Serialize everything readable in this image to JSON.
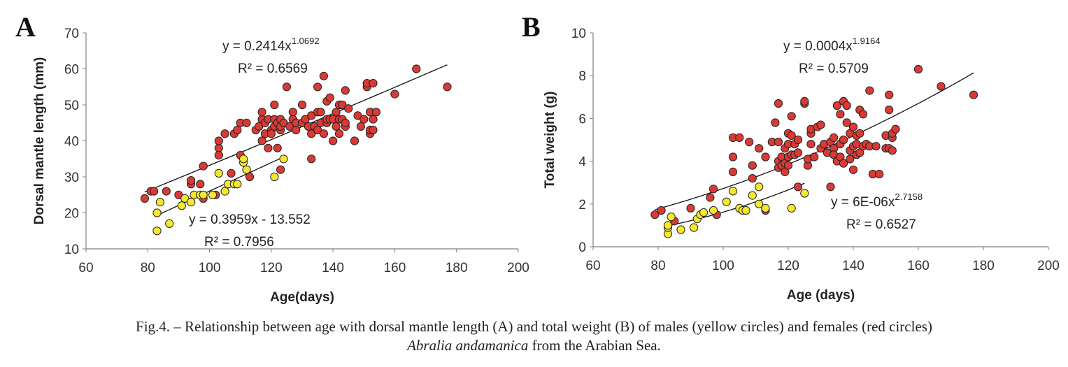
{
  "chart_data": [
    {
      "panel_label": "A",
      "type": "scatter",
      "xlabel": "Age(days)",
      "ylabel": "Dorsal mantle length (mm)",
      "xlim": [
        60,
        200
      ],
      "ylim": [
        10,
        70
      ],
      "xticks": [
        60,
        80,
        100,
        120,
        140,
        160,
        180,
        200
      ],
      "yticks": [
        10,
        20,
        30,
        40,
        50,
        60,
        70
      ],
      "grid": false,
      "colors": {
        "females": "#d93a35",
        "males": "#f5e72e",
        "edge": "#222222"
      },
      "series": [
        {
          "key": "females",
          "points": [
            [
              79,
              24
            ],
            [
              81,
              26
            ],
            [
              82,
              26
            ],
            [
              86,
              26
            ],
            [
              90,
              25
            ],
            [
              94,
              28
            ],
            [
              94,
              29
            ],
            [
              97,
              28
            ],
            [
              98,
              33
            ],
            [
              98,
              24
            ],
            [
              102,
              25
            ],
            [
              103,
              38
            ],
            [
              103,
              40
            ],
            [
              103,
              36
            ],
            [
              105,
              42
            ],
            [
              107,
              31
            ],
            [
              108,
              42
            ],
            [
              109,
              43
            ],
            [
              110,
              36
            ],
            [
              110,
              45
            ],
            [
              113,
              30
            ],
            [
              112,
              45
            ],
            [
              115,
              43
            ],
            [
              116,
              44
            ],
            [
              117,
              46
            ],
            [
              117,
              48
            ],
            [
              117,
              40
            ],
            [
              118,
              42
            ],
            [
              118,
              45
            ],
            [
              119,
              38
            ],
            [
              119,
              46
            ],
            [
              120,
              43
            ],
            [
              120,
              42
            ],
            [
              121,
              44
            ],
            [
              121,
              46
            ],
            [
              121,
              50
            ],
            [
              122,
              38
            ],
            [
              122,
              45
            ],
            [
              123,
              32
            ],
            [
              123,
              43
            ],
            [
              123,
              44
            ],
            [
              123,
              46
            ],
            [
              124,
              45
            ],
            [
              125,
              55
            ],
            [
              126,
              44
            ],
            [
              127,
              46
            ],
            [
              127,
              48
            ],
            [
              128,
              45
            ],
            [
              128,
              43
            ],
            [
              130,
              45
            ],
            [
              130,
              50
            ],
            [
              131,
              46
            ],
            [
              132,
              44
            ],
            [
              133,
              42
            ],
            [
              133,
              47
            ],
            [
              133,
              35
            ],
            [
              134,
              44
            ],
            [
              135,
              43
            ],
            [
              135,
              48
            ],
            [
              135,
              55
            ],
            [
              136,
              45
            ],
            [
              136,
              48
            ],
            [
              137,
              42
            ],
            [
              137,
              58
            ],
            [
              138,
              45
            ],
            [
              138,
              46
            ],
            [
              138,
              51
            ],
            [
              139,
              52
            ],
            [
              139,
              46
            ],
            [
              140,
              46
            ],
            [
              140,
              40
            ],
            [
              141,
              44
            ],
            [
              141,
              48
            ],
            [
              142,
              46
            ],
            [
              142,
              42
            ],
            [
              142,
              50
            ],
            [
              143,
              50
            ],
            [
              143,
              46
            ],
            [
              144,
              44
            ],
            [
              144,
              45
            ],
            [
              144,
              54
            ],
            [
              145,
              49
            ],
            [
              147,
              40
            ],
            [
              148,
              47
            ],
            [
              149,
              44
            ],
            [
              150,
              46
            ],
            [
              151,
              55
            ],
            [
              151,
              56
            ],
            [
              152,
              42
            ],
            [
              152,
              43
            ],
            [
              152,
              48
            ],
            [
              153,
              46
            ],
            [
              153,
              56
            ],
            [
              153,
              43
            ],
            [
              154,
              48
            ],
            [
              160,
              53
            ],
            [
              167,
              60
            ],
            [
              177,
              55
            ]
          ]
        },
        {
          "key": "males",
          "points": [
            [
              83,
              15
            ],
            [
              83,
              20
            ],
            [
              84,
              23
            ],
            [
              87,
              17
            ],
            [
              91,
              22
            ],
            [
              92,
              24
            ],
            [
              94,
              23
            ],
            [
              95,
              25
            ],
            [
              97,
              25
            ],
            [
              98,
              25
            ],
            [
              101,
              25
            ],
            [
              103,
              31
            ],
            [
              105,
              26
            ],
            [
              106,
              28
            ],
            [
              108,
              28
            ],
            [
              109,
              28
            ],
            [
              111,
              34
            ],
            [
              111,
              35
            ],
            [
              112,
              32
            ],
            [
              121,
              30
            ],
            [
              124,
              35
            ]
          ]
        }
      ],
      "trendlines": [
        {
          "key": "females",
          "eq": "y = 0.2414x",
          "exp": "1.0692",
          "r2": "R² = 0.6569",
          "a": 0.2414,
          "b": 1.0692,
          "model": "power",
          "x_range": [
            79,
            177
          ]
        },
        {
          "key": "males",
          "eq": "y = 0.3959x - 13.552",
          "exp": "",
          "r2": "R² = 0.7956",
          "a": 0.3959,
          "b": -13.552,
          "model": "linear",
          "x_range": [
            83,
            124
          ]
        }
      ]
    },
    {
      "panel_label": "B",
      "type": "scatter",
      "xlabel": "Age (days)",
      "ylabel": "Total weight (g)",
      "xlim": [
        60,
        200
      ],
      "ylim": [
        0,
        10
      ],
      "xticks": [
        60,
        80,
        100,
        120,
        140,
        160,
        180,
        200
      ],
      "yticks": [
        0,
        2,
        4,
        6,
        8,
        10
      ],
      "grid": false,
      "colors": {
        "females": "#d93a35",
        "males": "#f5e72e",
        "edge": "#222222"
      },
      "series": [
        {
          "key": "females",
          "points": [
            [
              79,
              1.5
            ],
            [
              81,
              1.7
            ],
            [
              85,
              1.2
            ],
            [
              90,
              1.8
            ],
            [
              96,
              2.3
            ],
            [
              97,
              2.7
            ],
            [
              98,
              1.5
            ],
            [
              103,
              3.5
            ],
            [
              103,
              4.2
            ],
            [
              103,
              5.1
            ],
            [
              105,
              5.1
            ],
            [
              108,
              4.9
            ],
            [
              109,
              3.8
            ],
            [
              109,
              3.2
            ],
            [
              111,
              4.6
            ],
            [
              113,
              1.7
            ],
            [
              113,
              4.2
            ],
            [
              115,
              4.9
            ],
            [
              116,
              5.8
            ],
            [
              117,
              3.7
            ],
            [
              117,
              4.0
            ],
            [
              117,
              4.9
            ],
            [
              117,
              6.7
            ],
            [
              118,
              3.8
            ],
            [
              118,
              4.2
            ],
            [
              119,
              3.9
            ],
            [
              119,
              4.6
            ],
            [
              119,
              3.5
            ],
            [
              120,
              4.2
            ],
            [
              120,
              4.8
            ],
            [
              120,
              3.8
            ],
            [
              120,
              5.3
            ],
            [
              121,
              4.3
            ],
            [
              121,
              5.2
            ],
            [
              121,
              6.1
            ],
            [
              122,
              4.3
            ],
            [
              122,
              4.8
            ],
            [
              123,
              2.8
            ],
            [
              123,
              4.4
            ],
            [
              123,
              5.0
            ],
            [
              125,
              6.7
            ],
            [
              125,
              6.8
            ],
            [
              126,
              3.8
            ],
            [
              126,
              4.1
            ],
            [
              127,
              4.8
            ],
            [
              127,
              5.3
            ],
            [
              127,
              5.5
            ],
            [
              128,
              4.2
            ],
            [
              129,
              5.6
            ],
            [
              130,
              4.6
            ],
            [
              130,
              5.7
            ],
            [
              131,
              4.8
            ],
            [
              132,
              4.4
            ],
            [
              133,
              2.8
            ],
            [
              133,
              4.9
            ],
            [
              134,
              4.6
            ],
            [
              134,
              4.3
            ],
            [
              134,
              5.1
            ],
            [
              135,
              4.0
            ],
            [
              135,
              6.6
            ],
            [
              136,
              4.2
            ],
            [
              136,
              4.8
            ],
            [
              136,
              6.2
            ],
            [
              137,
              3.9
            ],
            [
              137,
              5.0
            ],
            [
              137,
              6.8
            ],
            [
              138,
              5.8
            ],
            [
              138,
              6.6
            ],
            [
              139,
              4.1
            ],
            [
              139,
              4.5
            ],
            [
              139,
              5.3
            ],
            [
              140,
              3.6
            ],
            [
              140,
              4.7
            ],
            [
              140,
              5.6
            ],
            [
              141,
              4.3
            ],
            [
              141,
              4.8
            ],
            [
              141,
              5.2
            ],
            [
              142,
              5.3
            ],
            [
              142,
              4.4
            ],
            [
              142,
              6.4
            ],
            [
              143,
              4.7
            ],
            [
              143,
              6.2
            ],
            [
              144,
              4.8
            ],
            [
              145,
              4.7
            ],
            [
              145,
              7.3
            ],
            [
              146,
              3.4
            ],
            [
              147,
              4.7
            ],
            [
              148,
              3.4
            ],
            [
              150,
              5.2
            ],
            [
              150,
              4.6
            ],
            [
              151,
              4.6
            ],
            [
              151,
              6.4
            ],
            [
              151,
              7.1
            ],
            [
              152,
              4.5
            ],
            [
              152,
              5.1
            ],
            [
              152,
              5.3
            ],
            [
              153,
              5.5
            ],
            [
              160,
              8.3
            ],
            [
              167,
              7.5
            ],
            [
              177,
              7.1
            ]
          ]
        },
        {
          "key": "males",
          "points": [
            [
              83,
              0.6
            ],
            [
              83,
              0.9
            ],
            [
              83,
              1.0
            ],
            [
              84,
              1.4
            ],
            [
              87,
              0.8
            ],
            [
              91,
              0.9
            ],
            [
              92,
              1.3
            ],
            [
              93,
              1.5
            ],
            [
              94,
              1.6
            ],
            [
              97,
              1.7
            ],
            [
              101,
              2.1
            ],
            [
              103,
              2.6
            ],
            [
              105,
              1.8
            ],
            [
              106,
              1.7
            ],
            [
              107,
              1.7
            ],
            [
              109,
              2.4
            ],
            [
              111,
              2.8
            ],
            [
              111,
              2.0
            ],
            [
              113,
              1.8
            ],
            [
              121,
              1.8
            ],
            [
              125,
              2.5
            ]
          ]
        }
      ],
      "trendlines": [
        {
          "key": "females",
          "eq": "y = 0.0004x",
          "exp": "1.9164",
          "r2": "R² = 0.5709",
          "a": 0.0004,
          "b": 1.9164,
          "model": "power",
          "x_range": [
            79,
            177
          ]
        },
        {
          "key": "males",
          "eq": "y = 6E-06x",
          "exp": "2.7158",
          "r2": "R² = 0.6527",
          "a": 6e-06,
          "b": 2.7158,
          "model": "power",
          "x_range": [
            83,
            125
          ]
        }
      ]
    }
  ],
  "caption": {
    "line1": "Fig.4. – Relationship between age with dorsal mantle length (A) and total weight (B) of males (yellow circles) and females (red circles)",
    "line2_species": "Abralia andamanica",
    "line2_rest": " from the Arabian Sea."
  }
}
